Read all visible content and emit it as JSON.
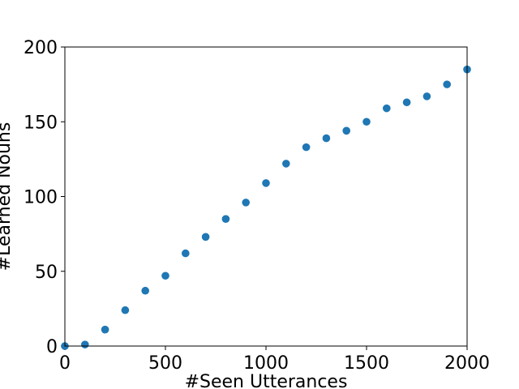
{
  "chart_data": {
    "type": "scatter",
    "title": "",
    "xlabel": "#Seen Utterances",
    "ylabel": "#Learned Nouns",
    "xlim": [
      0,
      2000
    ],
    "ylim": [
      0,
      200
    ],
    "xticks": [
      0,
      500,
      1000,
      1500,
      2000
    ],
    "yticks": [
      0,
      50,
      100,
      150,
      200
    ],
    "xtick_labels": [
      "0",
      "500",
      "1000",
      "1500",
      "2000"
    ],
    "ytick_labels": [
      "0",
      "50",
      "100",
      "150",
      "200"
    ],
    "grid": false,
    "legend": "none",
    "marker_color": "#1f77b4",
    "points": [
      {
        "x": 0,
        "y": 0
      },
      {
        "x": 100,
        "y": 1
      },
      {
        "x": 200,
        "y": 11
      },
      {
        "x": 300,
        "y": 24
      },
      {
        "x": 400,
        "y": 37
      },
      {
        "x": 500,
        "y": 47
      },
      {
        "x": 600,
        "y": 62
      },
      {
        "x": 700,
        "y": 73
      },
      {
        "x": 800,
        "y": 85
      },
      {
        "x": 900,
        "y": 96
      },
      {
        "x": 1000,
        "y": 109
      },
      {
        "x": 1100,
        "y": 122
      },
      {
        "x": 1200,
        "y": 133
      },
      {
        "x": 1300,
        "y": 139
      },
      {
        "x": 1400,
        "y": 144
      },
      {
        "x": 1500,
        "y": 150
      },
      {
        "x": 1600,
        "y": 159
      },
      {
        "x": 1700,
        "y": 163
      },
      {
        "x": 1800,
        "y": 167
      },
      {
        "x": 1900,
        "y": 175
      },
      {
        "x": 2000,
        "y": 185
      }
    ]
  }
}
